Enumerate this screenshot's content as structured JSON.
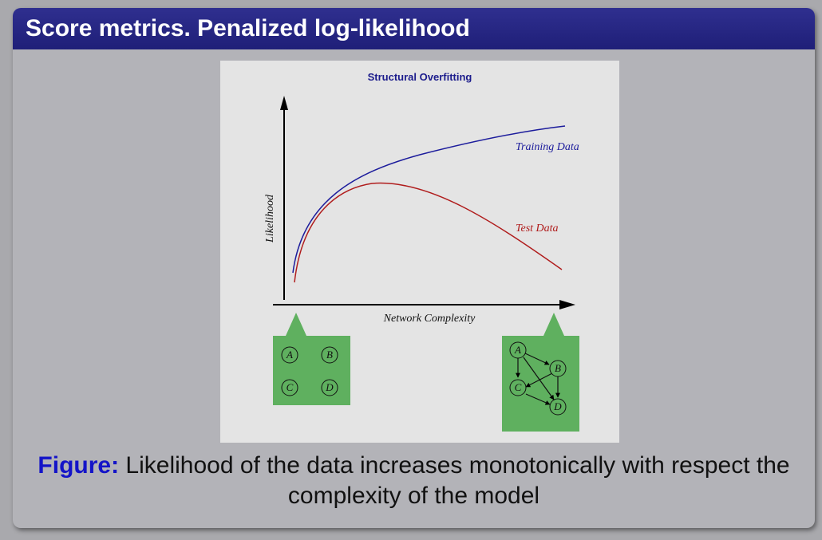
{
  "slide": {
    "title": "Score metrics. Penalized log-likelihood"
  },
  "chart_data": {
    "type": "line",
    "title": "Structural Overfitting",
    "xlabel": "Network Complexity",
    "ylabel": "Likelihood",
    "series": [
      {
        "name": "Training Data",
        "color": "#1c1c9c"
      },
      {
        "name": "Test Data",
        "color": "#b01c1c"
      }
    ],
    "insets": {
      "left_nodes": [
        "A",
        "B",
        "C",
        "D"
      ],
      "right_nodes": [
        "A",
        "B",
        "C",
        "D"
      ]
    }
  },
  "caption": {
    "label": "Figure:",
    "text": " Likelihood of the data increases monotonically with respect the complexity of the model"
  }
}
